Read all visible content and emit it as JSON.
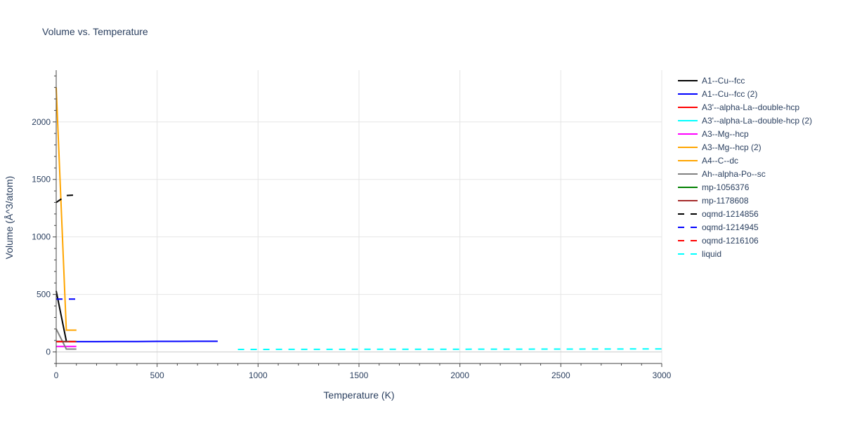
{
  "chart_data": {
    "type": "line",
    "title": "Volume vs. Temperature",
    "xlabel": "Temperature (K)",
    "ylabel": "Volume (Å^3/atom)",
    "xlim": [
      0,
      3000
    ],
    "ylim": [
      -100,
      2450
    ],
    "x_ticks": [
      0,
      500,
      1000,
      1500,
      2000,
      2500,
      3000
    ],
    "y_ticks": [
      0,
      500,
      1000,
      1500,
      2000
    ],
    "grid": true,
    "legend_position": "right",
    "series": [
      {
        "name": "A1--Cu--fcc",
        "color": "#000000",
        "dash": "solid",
        "x": [
          0,
          50
        ],
        "y": [
          530,
          95
        ]
      },
      {
        "name": "A1--Cu--fcc (2)",
        "color": "#0000ff",
        "dash": "solid",
        "x": [
          0,
          100,
          200,
          300,
          400,
          500,
          600,
          700,
          800
        ],
        "y": [
          90,
          90,
          90,
          91,
          91,
          92,
          92,
          93,
          93
        ]
      },
      {
        "name": "A3'--alpha-La--double-hcp",
        "color": "#ff0000",
        "dash": "solid",
        "x": [
          0,
          100
        ],
        "y": [
          90,
          90
        ]
      },
      {
        "name": "A3'--alpha-La--double-hcp (2)",
        "color": "#00ffff",
        "dash": "solid",
        "x": [
          0,
          100
        ],
        "y": [
          90,
          90
        ]
      },
      {
        "name": "A3--Mg--hcp",
        "color": "#ff00ff",
        "dash": "solid",
        "x": [
          0,
          100
        ],
        "y": [
          48,
          48
        ]
      },
      {
        "name": "A3--Mg--hcp (2)",
        "color": "#ffa500",
        "dash": "solid",
        "x": [
          50,
          100
        ],
        "y": [
          190,
          190
        ]
      },
      {
        "name": "A4--C--dc",
        "color": "#ffa500",
        "dash": "solid",
        "x": [
          0,
          50,
          100
        ],
        "y": [
          2300,
          190,
          190
        ]
      },
      {
        "name": "Ah--alpha-Po--sc",
        "color": "#808080",
        "dash": "solid",
        "x": [
          0,
          50,
          100
        ],
        "y": [
          200,
          25,
          25
        ]
      },
      {
        "name": "mp-1056376",
        "color": "#008000",
        "dash": "solid",
        "x": [
          0,
          100
        ],
        "y": [
          90,
          90
        ]
      },
      {
        "name": "mp-1178608",
        "color": "#a52a2a",
        "dash": "solid",
        "x": [
          0,
          100
        ],
        "y": [
          90,
          90
        ]
      },
      {
        "name": "oqmd-1214856",
        "color": "#000000",
        "dash": "dash",
        "x": [
          0,
          50,
          100
        ],
        "y": [
          1300,
          1360,
          1365
        ]
      },
      {
        "name": "oqmd-1214945",
        "color": "#0000ff",
        "dash": "dash",
        "x": [
          0,
          100
        ],
        "y": [
          460,
          460
        ]
      },
      {
        "name": "oqmd-1216106",
        "color": "#ff0000",
        "dash": "dash",
        "x": [
          0,
          100
        ],
        "y": [
          90,
          90
        ]
      },
      {
        "name": "liquid",
        "color": "#00ffff",
        "dash": "dash",
        "x": [
          900,
          1500,
          2000,
          2500,
          3000
        ],
        "y": [
          22,
          23,
          24,
          25,
          27
        ]
      }
    ]
  }
}
